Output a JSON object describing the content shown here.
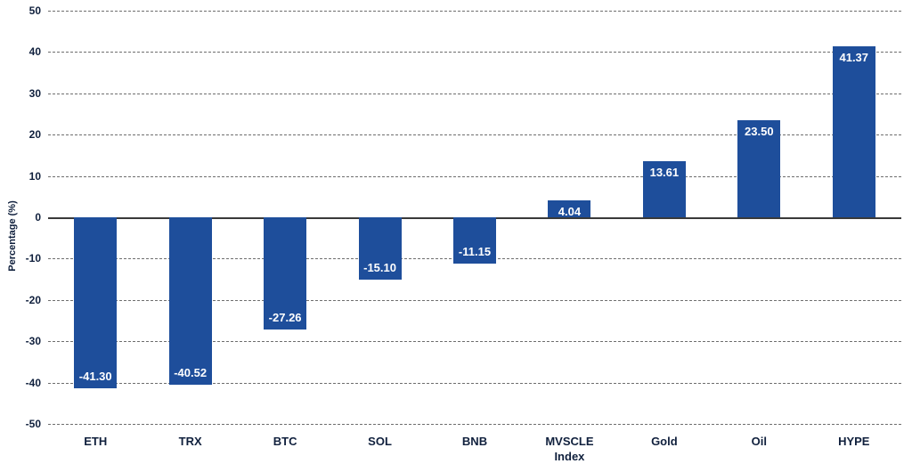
{
  "chart_data": {
    "type": "bar",
    "categories": [
      "ETH",
      "TRX",
      "BTC",
      "SOL",
      "BNB",
      "MVSCLE\nIndex",
      "Gold",
      "Oil",
      "HYPE"
    ],
    "values": [
      -41.3,
      -40.52,
      -27.26,
      -15.1,
      -11.15,
      4.04,
      13.61,
      23.5,
      41.37
    ],
    "value_labels": [
      "-41.30",
      "-40.52",
      "-27.26",
      "-15.10",
      "-11.15",
      "4.04",
      "13.61",
      "23.50",
      "41.37"
    ],
    "title": "",
    "xlabel": "",
    "ylabel": "Percentage (%)",
    "ylim": [
      -50,
      50
    ],
    "yticks": [
      50,
      40,
      30,
      20,
      10,
      0,
      -10,
      -20,
      -30,
      -40,
      -50
    ],
    "grid": "horizontal-dashed",
    "legend": "none",
    "colors": {
      "bar": "#1e4e9b",
      "value_label": "#ffffff",
      "axis_text": "#10203d",
      "gridline": "#6e6e6e",
      "zero_line": "#3a3a3a",
      "background": "#ffffff"
    }
  }
}
